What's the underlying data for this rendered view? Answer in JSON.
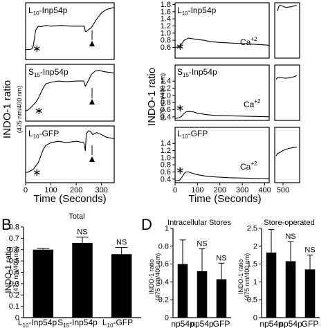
{
  "top_left": {
    "ylabel": "INDO-1 ratio",
    "ylabel_unit": "(475 nm/400 nm)",
    "xlabel": "Time (Seconds)",
    "xticks": [
      "0",
      "100",
      "200",
      "300"
    ],
    "panels": [
      {
        "title_main": "L",
        "title_sub": "10",
        "title_rest": "-Inp54p"
      },
      {
        "title_main": "S",
        "title_sub": "15",
        "title_rest": "-Inp54p"
      },
      {
        "title_main": "L",
        "title_sub": "10",
        "title_rest": "-GFP"
      }
    ]
  },
  "top_right": {
    "ylabel": "INDO-1 ratio",
    "ylabel_unit": "(475 nm/400 nm)",
    "xlabel": "Time (Seconds)",
    "xticks": [
      "0",
      "100",
      "200",
      "300",
      "400",
      "500"
    ],
    "yticks": [
      "0.4",
      "0.6",
      "0.8",
      "1.0",
      "1.2",
      "1.4",
      "1.6",
      "1.8"
    ],
    "ca_label": "Ca",
    "ca_sup": "+2",
    "panels": [
      {
        "title_main": "L",
        "title_sub": "10",
        "title_rest": "-Inp54p"
      },
      {
        "title_main": "S",
        "title_sub": "15",
        "title_rest": "-Inp54p"
      },
      {
        "title_main": "L",
        "title_sub": "10",
        "title_rest": "-GFP"
      }
    ]
  },
  "panel_b": {
    "letter": "B",
    "title": "Total",
    "ylabel": "INDO-1 ratio",
    "ylabel_unit": "(475 nm/400 nm)",
    "yticks": [
      "0",
      "0.1",
      "0.2",
      "0.3",
      "0.4",
      "0.5",
      "0.6",
      "0.7",
      "0.8"
    ]
  },
  "panel_d": {
    "letter": "D",
    "left_title": "Intracellular Stores",
    "right_title": "Store-operated",
    "ylabel": "INDO-1 ratio",
    "ylabel_unit": "(475 nm/400 nm)",
    "left_yticks": [
      "0",
      "0.2",
      "0.4",
      "0.6",
      "0.8",
      "1"
    ],
    "right_yticks": [
      "0",
      "0.5",
      "1",
      "1.5",
      "2",
      "2.5"
    ],
    "xlabels": [
      "np54p",
      "np54p",
      "GFP"
    ]
  },
  "chart_data": [
    {
      "type": "line",
      "panel": "top-left",
      "xlim": [
        0,
        350
      ],
      "series": [
        {
          "x": [
            0,
            15,
            25,
            30,
            35,
            40,
            50,
            60,
            80,
            100,
            140,
            180,
            220,
            232,
            236,
            240,
            260,
            280,
            300,
            320,
            350
          ],
          "values": [
            0.45,
            0.45,
            0.46,
            0.5,
            0.62,
            0.74,
            0.8,
            0.79,
            0.81,
            0.8,
            0.81,
            0.8,
            0.8,
            0.8,
            0.72,
            0.72,
            0.78,
            0.9,
            1.0,
            1.05,
            1.08
          ]
        },
        {
          "x": [
            0,
            10,
            20,
            30,
            40,
            50,
            60,
            70,
            80,
            100,
            130,
            160,
            200,
            230,
            236,
            240,
            250,
            260,
            275,
            290,
            310,
            330,
            350
          ],
          "values": [
            0.45,
            0.47,
            0.5,
            0.54,
            0.58,
            0.64,
            0.72,
            0.8,
            0.86,
            0.88,
            0.9,
            0.89,
            0.9,
            0.9,
            0.82,
            0.85,
            0.92,
            1.0,
            1.05,
            1.06,
            1.04,
            1.03,
            1.02
          ]
        },
        {
          "x": [
            0,
            10,
            20,
            30,
            40,
            50,
            60,
            70,
            80,
            100,
            130,
            160,
            200,
            230,
            236,
            240,
            250,
            258,
            265,
            280,
            300,
            320,
            350
          ],
          "values": [
            0.45,
            0.46,
            0.48,
            0.5,
            0.55,
            0.6,
            0.7,
            0.8,
            0.86,
            0.9,
            0.92,
            0.9,
            0.92,
            0.9,
            0.78,
            1.04,
            1.08,
            1.06,
            1.02,
            1.05,
            1.02,
            0.98,
            0.96
          ]
        }
      ]
    },
    {
      "type": "line",
      "panel": "top-right",
      "xlim": [
        0,
        560
      ],
      "ylim": [
        0.3,
        1.85
      ],
      "series": [
        {
          "x": [
            0,
            20,
            30,
            40,
            60,
            80,
            100,
            130,
            160,
            200,
            260,
            320,
            380,
            420,
            480,
            485,
            490,
            510,
            530,
            550
          ],
          "values": [
            0.6,
            0.62,
            0.7,
            0.8,
            0.86,
            0.84,
            0.82,
            0.8,
            0.76,
            0.74,
            0.72,
            0.7,
            0.68,
            0.66,
            1.62,
            1.75,
            1.78,
            1.72,
            1.74,
            1.78
          ]
        },
        {
          "x": [
            0,
            20,
            30,
            40,
            50,
            60,
            80,
            100,
            140,
            180,
            240,
            300,
            360,
            420,
            475,
            480,
            490,
            510,
            530,
            550
          ],
          "values": [
            0.35,
            0.38,
            0.42,
            0.5,
            0.54,
            0.55,
            0.54,
            0.5,
            0.46,
            0.44,
            0.43,
            0.42,
            0.41,
            0.4,
            1.45,
            1.5,
            1.5,
            1.48,
            1.5,
            1.55
          ]
        },
        {
          "x": [
            0,
            20,
            30,
            40,
            50,
            60,
            80,
            100,
            140,
            180,
            240,
            300,
            360,
            420,
            475,
            480,
            490,
            500,
            520,
            550
          ],
          "values": [
            0.35,
            0.37,
            0.45,
            0.55,
            0.6,
            0.6,
            0.56,
            0.52,
            0.48,
            0.46,
            0.44,
            0.43,
            0.42,
            0.41,
            1.05,
            1.12,
            1.15,
            1.2,
            1.26,
            1.3
          ]
        }
      ]
    },
    {
      "type": "bar",
      "panel": "B",
      "title": "Total",
      "ylabel": "INDO-1 ratio (475 nm/400 nm)",
      "ylim": [
        0,
        0.8
      ],
      "categories": [
        "L10-Inp54p",
        "S15-Inp54p",
        "L10-GFP"
      ],
      "values": [
        0.6,
        0.66,
        0.56
      ],
      "errors": [
        0.01,
        0.05,
        0.06
      ],
      "annotations": [
        "",
        "NS",
        "NS"
      ]
    },
    {
      "type": "bar",
      "panel": "D-left",
      "title": "Intracellular Stores",
      "ylim": [
        0,
        1
      ],
      "categories": [
        "np54p",
        "np54p",
        "GFP"
      ],
      "values": [
        0.6,
        0.52,
        0.43
      ],
      "errors": [
        0.27,
        0.25,
        0.18
      ],
      "annotations": [
        "",
        "NS",
        "NS"
      ]
    },
    {
      "type": "bar",
      "panel": "D-right",
      "title": "Store-operated",
      "ylim": [
        0,
        2.5
      ],
      "categories": [
        "np54p",
        "np54p",
        "GFP"
      ],
      "values": [
        1.82,
        1.58,
        1.35
      ],
      "errors": [
        0.65,
        0.55,
        0.4
      ],
      "annotations": [
        "",
        "NS",
        "NS"
      ]
    }
  ]
}
